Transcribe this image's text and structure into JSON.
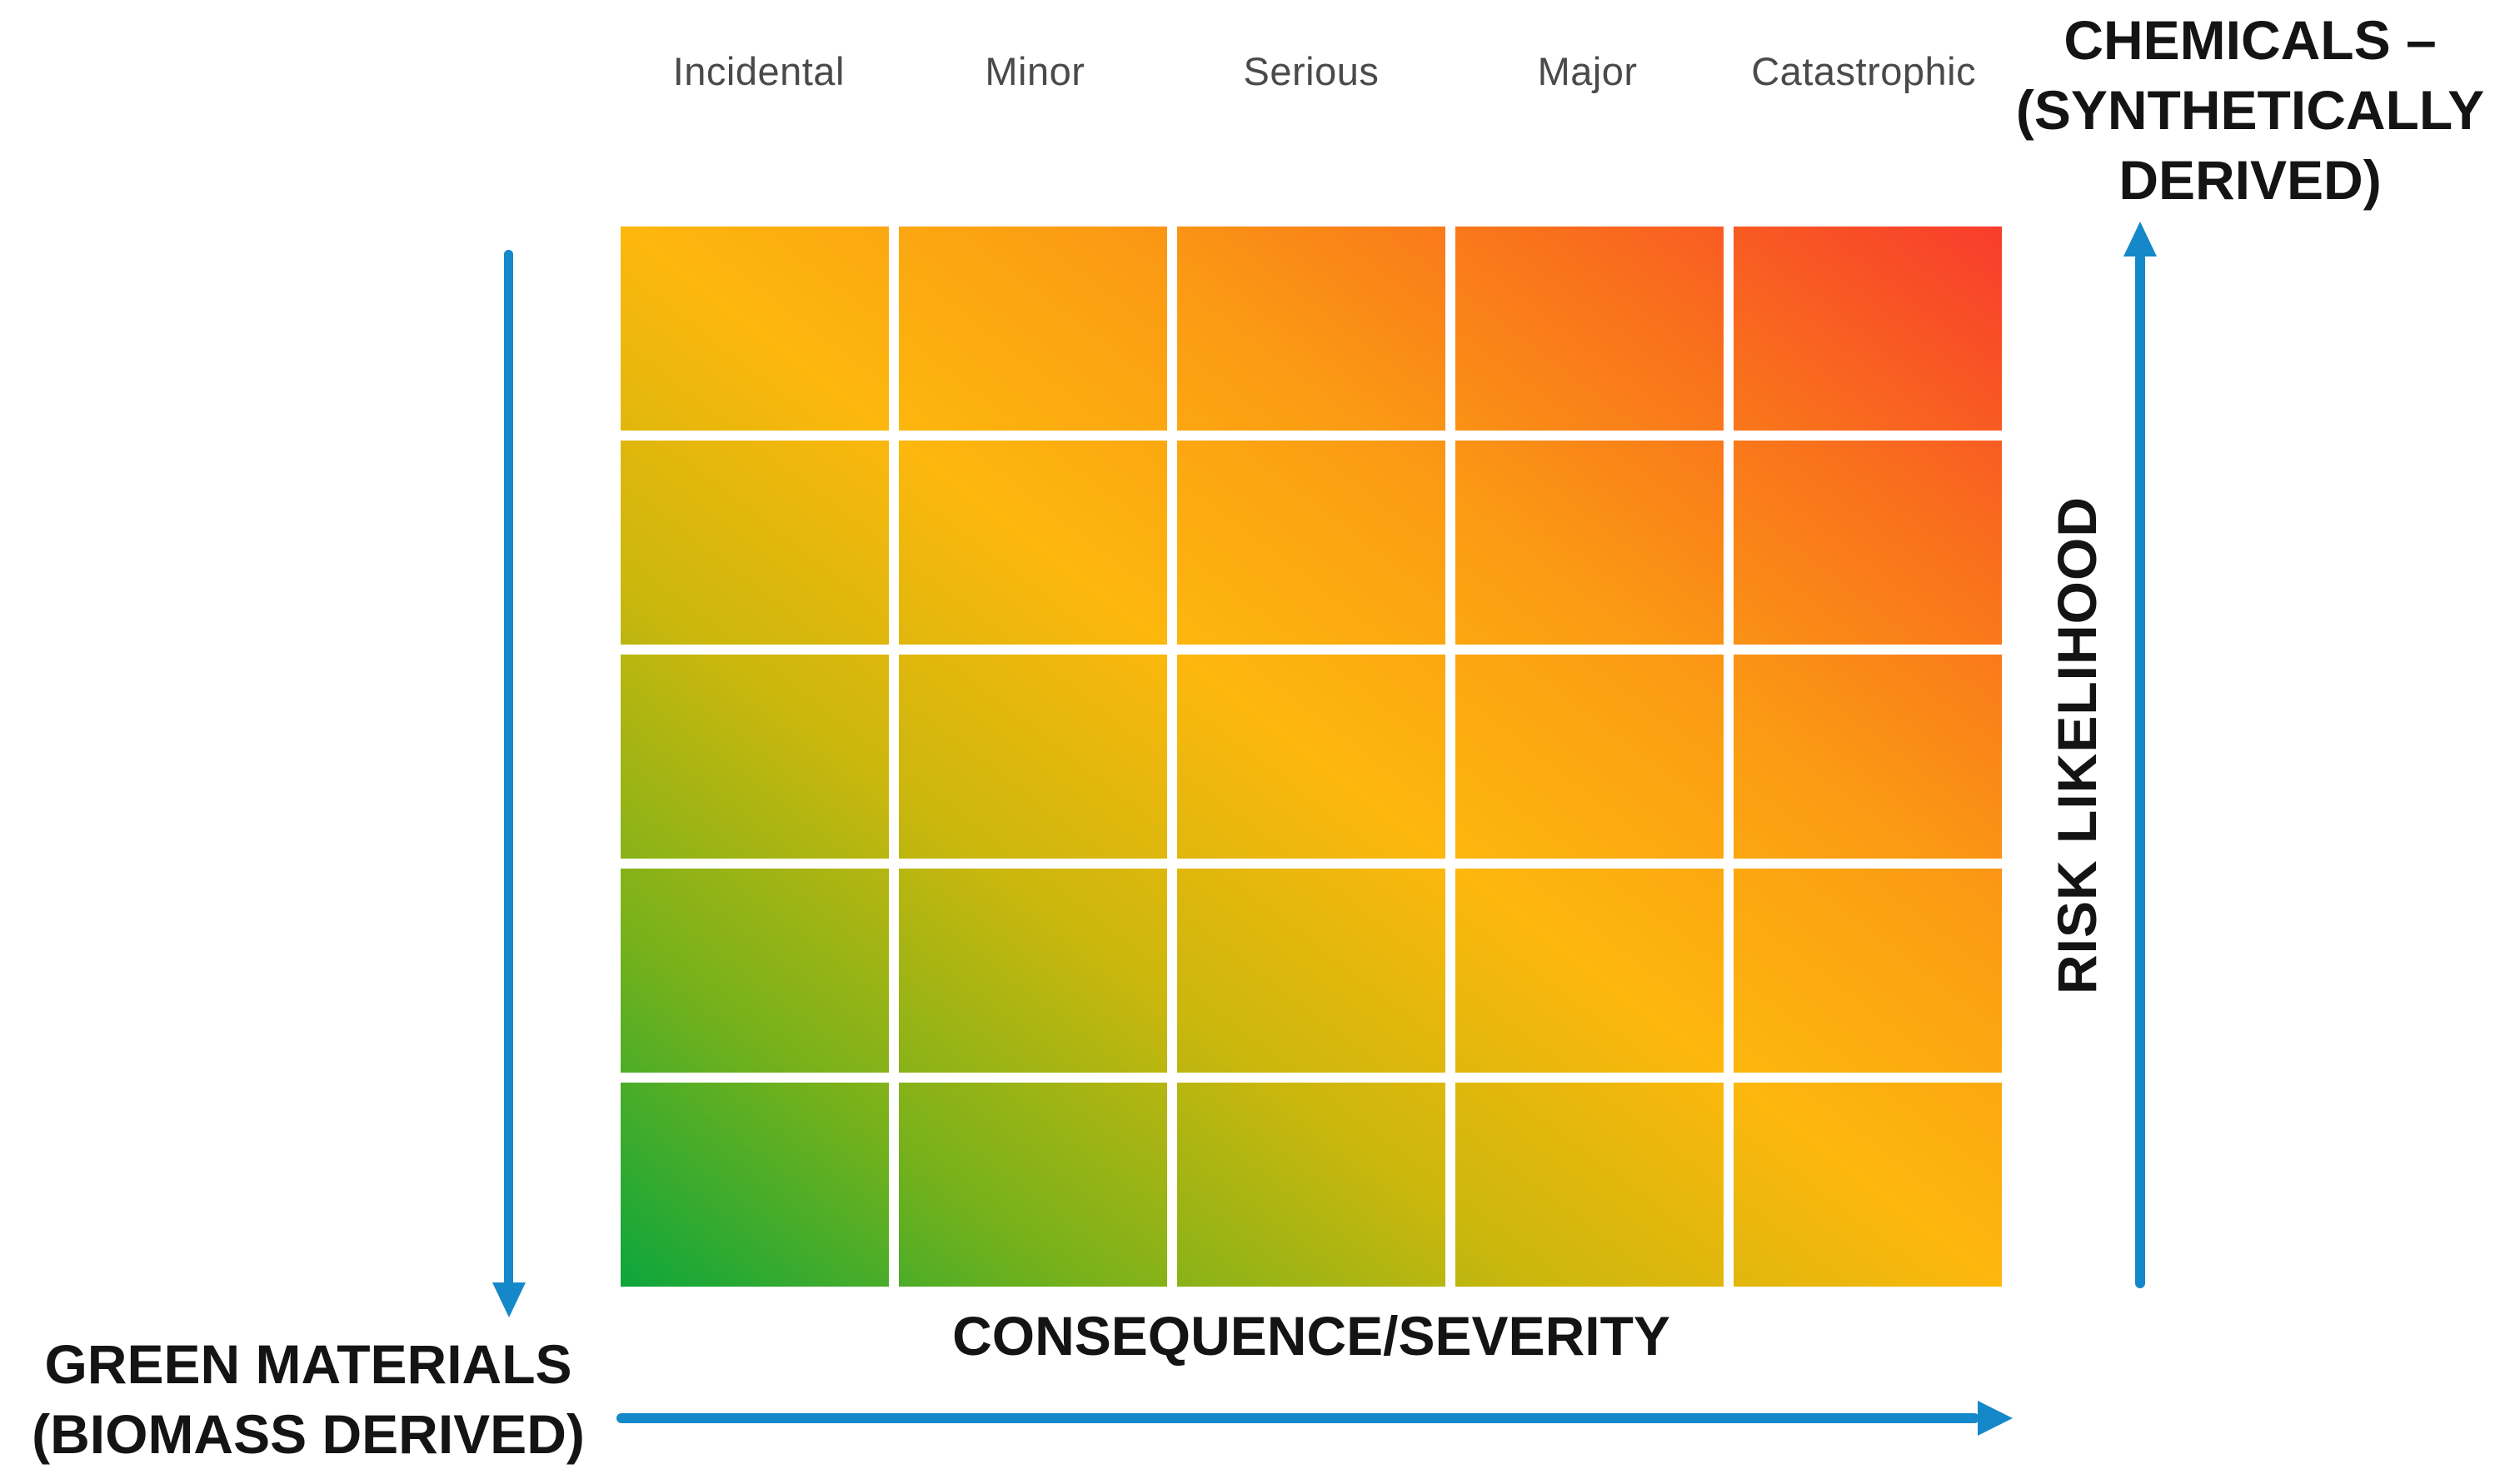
{
  "page": {
    "background": "#FFFFFF"
  },
  "colors": {
    "arrow_blue": "#1488C9",
    "header_text": "#4A4A4A",
    "label_text": "#141414",
    "gridline_white": "#FFFFFF"
  },
  "labels": {
    "top_right_lines": [
      "CHEMICALS –",
      "(SYNTHETICALLY",
      "DERIVED)"
    ],
    "bottom_left_lines": [
      "GREEN MATERIALS",
      "(BIOMASS DERIVED)"
    ],
    "y_axis": "RISK LIKELIHOOD",
    "x_axis": "CONSEQUENCE/SEVERITY"
  },
  "chart_data": {
    "type": "heatmap",
    "title": "",
    "x_categories": [
      "Incidental",
      "Minor",
      "Serious",
      "Major",
      "Catastrophic"
    ],
    "xlabel": "CONSEQUENCE/SEVERITY",
    "ylabel": "RISK LIKELIHOOD",
    "rows": 5,
    "cols": 5,
    "y_tick_labels": [],
    "color_scale": {
      "description": "continuous diagonal gradient, low risk green at bottom-left to high risk red at top-right",
      "stops": [
        "#0CA63C",
        "#76B11B",
        "#CBB70D",
        "#FDB70D",
        "#FB9C13",
        "#F9701C",
        "#F83C2C"
      ]
    },
    "annotations": [
      "CHEMICALS – (SYNTHETICALLY DERIVED)",
      "GREEN MATERIALS (BIOMASS DERIVED)"
    ],
    "grid": true,
    "legend": false
  }
}
